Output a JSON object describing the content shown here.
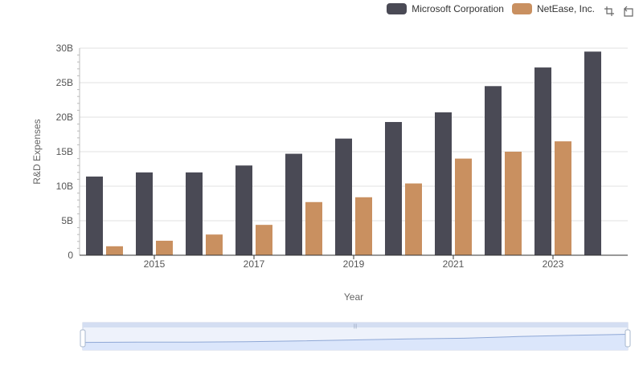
{
  "legend": {
    "items": [
      {
        "label": "Microsoft Corporation",
        "color": "#4a4a55"
      },
      {
        "label": "NetEase, Inc.",
        "color": "#c99060"
      }
    ]
  },
  "toolbox": {
    "icons": [
      "zoom-icon",
      "zoom-reset-icon"
    ]
  },
  "chart_data": {
    "type": "bar",
    "xlabel": "Year",
    "ylabel": "R&D Expenses",
    "categories": [
      "2014",
      "2015",
      "2016",
      "2017",
      "2018",
      "2019",
      "2020",
      "2021",
      "2022",
      "2023",
      "2024"
    ],
    "x_tick_labels": [
      "2015",
      "2017",
      "2019",
      "2021",
      "2023"
    ],
    "y_tick_labels": [
      "0",
      "5B",
      "10B",
      "15B",
      "20B",
      "25B",
      "30B"
    ],
    "ylim": [
      0,
      30000000000
    ],
    "grid": true,
    "legend_position": "top-right",
    "series": [
      {
        "name": "Microsoft Corporation",
        "color": "#4a4a55",
        "values": [
          11400000000,
          12000000000,
          12000000000,
          13000000000,
          14700000000,
          16900000000,
          19300000000,
          20700000000,
          24500000000,
          27200000000,
          29500000000
        ]
      },
      {
        "name": "NetEase, Inc.",
        "color": "#c99060",
        "values": [
          1300000000,
          2100000000,
          3000000000,
          4400000000,
          7700000000,
          8400000000,
          10400000000,
          14000000000,
          15000000000,
          16500000000,
          null
        ]
      }
    ]
  },
  "datazoom": {
    "handle_color": "#a7b7cc",
    "fill_color": "#dbe6fb",
    "range_label": "|||"
  }
}
